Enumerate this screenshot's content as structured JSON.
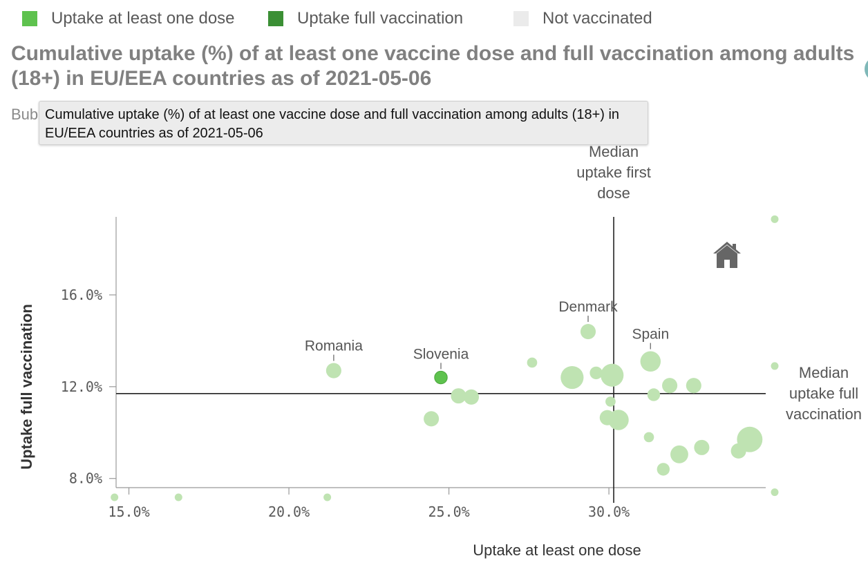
{
  "legend": [
    {
      "label": "Uptake at least one dose",
      "color": "#5ec24e"
    },
    {
      "label": "Uptake full vaccination",
      "color": "#3b8f35"
    },
    {
      "label": "Not vaccinated",
      "color": "#ebebeb"
    }
  ],
  "title": "Cumulative uptake (%) of at least one vaccine dose and full vaccination among adults (18+) in EU/EEA countries as of 2021-05-06",
  "subtitle_fragment": "Bub",
  "tooltip": {
    "text": "Cumulative uptake (%) of at least one vaccine dose and full vaccination among adults (18+) in EU/EEA countries as of 2021-05-06"
  },
  "home_icon": "home-icon",
  "colors": {
    "point": "#bfe3b2",
    "highlight": "#5ec24e",
    "highlight_stroke": "#4aa53c",
    "axis": "#999999",
    "reference_line": "#222222"
  },
  "chart_data": {
    "type": "scatter",
    "title": "Cumulative uptake (%) of at least one vaccine dose and full vaccination among adults (18+) in EU/EEA countries as of 2021-05-06",
    "xlabel": "Uptake at least one dose",
    "ylabel": "Uptake full vaccination",
    "x_ticks": [
      15,
      20,
      25,
      30
    ],
    "x_tick_labels": [
      "15.0%",
      "20.0%",
      "25.0%",
      "30.0%"
    ],
    "y_ticks": [
      8,
      12,
      16
    ],
    "y_tick_labels": [
      "8.0%",
      "12.0%",
      "16.0%"
    ],
    "xlim": [
      14.6,
      34.9
    ],
    "ylim": [
      7.6,
      19.4
    ],
    "reference_lines": [
      {
        "axis": "x",
        "value": 30.15,
        "label": "Median uptake first dose"
      },
      {
        "axis": "y",
        "value": 11.7,
        "label": "Median uptake full vaccination"
      }
    ],
    "points": [
      {
        "x": 21.4,
        "y": 12.7,
        "size": 3,
        "label": "Romania"
      },
      {
        "x": 24.75,
        "y": 12.4,
        "size": 2,
        "label": "Slovenia",
        "highlight": true
      },
      {
        "x": 29.35,
        "y": 14.4,
        "size": 3,
        "label": "Denmark"
      },
      {
        "x": 31.3,
        "y": 13.1,
        "size": 5,
        "label": "Spain"
      },
      {
        "x": 27.6,
        "y": 13.05,
        "size": 1
      },
      {
        "x": 28.85,
        "y": 12.4,
        "size": 6
      },
      {
        "x": 29.6,
        "y": 12.6,
        "size": 2
      },
      {
        "x": 30.1,
        "y": 12.5,
        "size": 6
      },
      {
        "x": 25.3,
        "y": 11.6,
        "size": 3
      },
      {
        "x": 25.7,
        "y": 11.55,
        "size": 3
      },
      {
        "x": 24.45,
        "y": 10.6,
        "size": 3
      },
      {
        "x": 30.05,
        "y": 11.35,
        "size": 1
      },
      {
        "x": 29.95,
        "y": 10.65,
        "size": 3
      },
      {
        "x": 30.3,
        "y": 10.55,
        "size": 5
      },
      {
        "x": 31.4,
        "y": 11.65,
        "size": 2
      },
      {
        "x": 31.9,
        "y": 12.05,
        "size": 3
      },
      {
        "x": 32.65,
        "y": 12.05,
        "size": 3
      },
      {
        "x": 31.25,
        "y": 9.8,
        "size": 1
      },
      {
        "x": 32.2,
        "y": 9.05,
        "size": 4
      },
      {
        "x": 32.9,
        "y": 9.35,
        "size": 3
      },
      {
        "x": 34.05,
        "y": 9.2,
        "size": 3
      },
      {
        "x": 34.4,
        "y": 9.7,
        "size": 7
      },
      {
        "x": 31.7,
        "y": 8.4,
        "size": 2
      }
    ],
    "edge_markers": [
      {
        "position": "left",
        "x": 14.55
      },
      {
        "position": "left",
        "x": 16.55
      },
      {
        "position": "left",
        "x": 21.2
      },
      {
        "position": "right",
        "y": 19.3
      },
      {
        "position": "right",
        "y": 12.9
      },
      {
        "position": "right",
        "y": 7.4
      }
    ]
  }
}
